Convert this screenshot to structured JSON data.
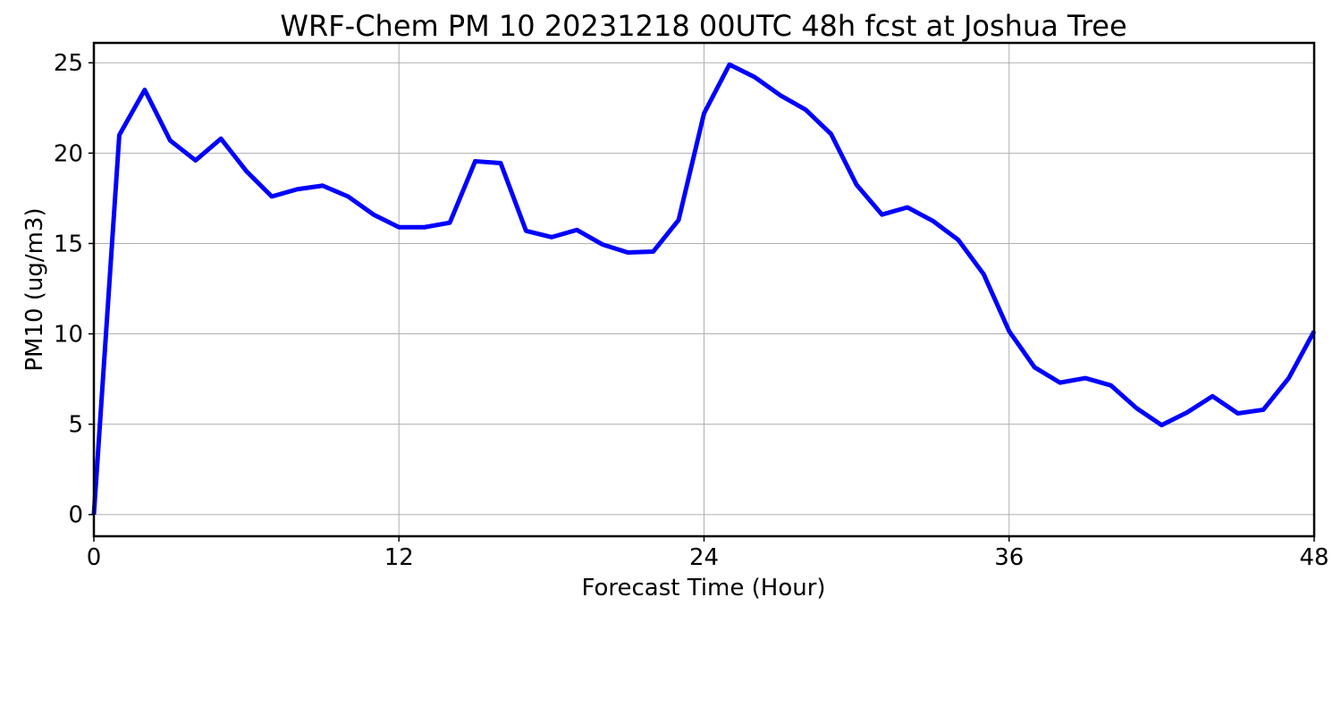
{
  "chart_data": {
    "type": "line",
    "title": "WRF-Chem PM 10  20231218 00UTC 48h fcst at Joshua Tree",
    "xlabel": "Forecast Time (Hour)",
    "ylabel": "PM10  (ug/m3)",
    "xlim": [
      0,
      48
    ],
    "ylim": [
      -1.2,
      26.1
    ],
    "xticks": [
      0,
      12,
      24,
      36,
      48
    ],
    "yticks": [
      0,
      5,
      10,
      15,
      20,
      25
    ],
    "grid": true,
    "legend": "none",
    "x": [
      0,
      1,
      2,
      3,
      4,
      5,
      6,
      7,
      8,
      9,
      10,
      11,
      12,
      13,
      14,
      15,
      16,
      17,
      18,
      19,
      20,
      21,
      22,
      23,
      24,
      25,
      26,
      27,
      28,
      29,
      30,
      31,
      32,
      33,
      34,
      35,
      36,
      37,
      38,
      39,
      40,
      41,
      42,
      43,
      44,
      45,
      46,
      47,
      48
    ],
    "series": [
      {
        "color": "#0000ff",
        "values": [
          0.0,
          21.0,
          23.5,
          20.7,
          19.6,
          20.8,
          19.0,
          17.6,
          18.0,
          18.2,
          17.6,
          16.6,
          15.9,
          15.9,
          16.15,
          19.55,
          19.45,
          15.7,
          15.35,
          15.75,
          14.95,
          14.5,
          14.55,
          16.3,
          22.2,
          24.9,
          24.2,
          23.2,
          22.4,
          21.05,
          18.25,
          16.6,
          17.0,
          16.25,
          15.2,
          13.3,
          10.15,
          8.15,
          7.3,
          7.55,
          7.15,
          5.9,
          4.95,
          5.65,
          6.55,
          5.6,
          5.8,
          7.55,
          10.15
        ]
      }
    ]
  }
}
